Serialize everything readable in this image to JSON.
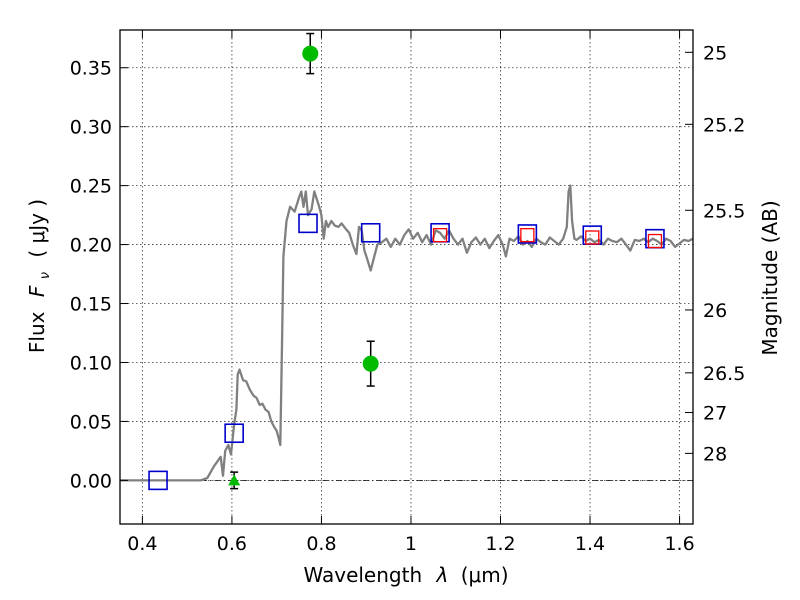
{
  "chart_data": {
    "type": "scatter",
    "xlabel": "Wavelength",
    "xlabel_symbol": "λ",
    "xlabel_unit": "(μm)",
    "ylabel": "Flux",
    "ylabel_symbol": "F",
    "ylabel_symbol_sub": "ν",
    "ylabel_unit": "( μJy )",
    "ylabel_right": "Magnitude (AB)",
    "xlim": [
      0.35,
      1.63
    ],
    "ylim": [
      -0.037,
      0.382
    ],
    "grid": true,
    "x_ticks": [
      0.4,
      0.6,
      0.8,
      1.0,
      1.2,
      1.4,
      1.6
    ],
    "x_tick_labels": [
      "0.4",
      "0.6",
      "0.8",
      "1",
      "1.2",
      "1.4",
      "1.6"
    ],
    "y_ticks": [
      0.0,
      0.05,
      0.1,
      0.15,
      0.2,
      0.25,
      0.3,
      0.35
    ],
    "y_tick_labels": [
      "0.00",
      "0.05",
      "0.10",
      "0.15",
      "0.20",
      "0.25",
      "0.30",
      "0.35"
    ],
    "mag_ticks": [
      25,
      25.2,
      25.5,
      26,
      26.5,
      27,
      28
    ],
    "mag_tick_labels": [
      "25",
      "25.2",
      "25.5",
      "26",
      "26.5",
      "27",
      "28"
    ],
    "zero_line": 0.0,
    "colors": {
      "template": "#808080",
      "model_squares": "#0000cc",
      "model_squares_red": "#ff0000",
      "observed_points": "#00bb00",
      "error_bars": "#000000"
    },
    "series": [
      {
        "kind": "template_spectrum",
        "points": [
          [
            0.35,
            0.0
          ],
          [
            0.53,
            0.0
          ],
          [
            0.545,
            0.002
          ],
          [
            0.56,
            0.012
          ],
          [
            0.575,
            0.02
          ],
          [
            0.58,
            0.004
          ],
          [
            0.585,
            0.025
          ],
          [
            0.592,
            0.03
          ],
          [
            0.598,
            0.022
          ],
          [
            0.605,
            0.048
          ],
          [
            0.61,
            0.06
          ],
          [
            0.613,
            0.09
          ],
          [
            0.617,
            0.094
          ],
          [
            0.625,
            0.085
          ],
          [
            0.632,
            0.084
          ],
          [
            0.64,
            0.077
          ],
          [
            0.648,
            0.072
          ],
          [
            0.655,
            0.07
          ],
          [
            0.662,
            0.064
          ],
          [
            0.668,
            0.065
          ],
          [
            0.675,
            0.06
          ],
          [
            0.682,
            0.058
          ],
          [
            0.688,
            0.05
          ],
          [
            0.695,
            0.045
          ],
          [
            0.7,
            0.042
          ],
          [
            0.705,
            0.035
          ],
          [
            0.708,
            0.03
          ],
          [
            0.712,
            0.12
          ],
          [
            0.715,
            0.19
          ],
          [
            0.722,
            0.22
          ],
          [
            0.73,
            0.232
          ],
          [
            0.74,
            0.228
          ],
          [
            0.75,
            0.24
          ],
          [
            0.755,
            0.245
          ],
          [
            0.76,
            0.232
          ],
          [
            0.765,
            0.245
          ],
          [
            0.77,
            0.225
          ],
          [
            0.778,
            0.23
          ],
          [
            0.784,
            0.245
          ],
          [
            0.79,
            0.238
          ],
          [
            0.795,
            0.232
          ],
          [
            0.8,
            0.225
          ],
          [
            0.805,
            0.205
          ],
          [
            0.81,
            0.22
          ],
          [
            0.815,
            0.215
          ],
          [
            0.822,
            0.22
          ],
          [
            0.83,
            0.216
          ],
          [
            0.838,
            0.215
          ],
          [
            0.845,
            0.218
          ],
          [
            0.855,
            0.213
          ],
          [
            0.862,
            0.21
          ],
          [
            0.87,
            0.2
          ],
          [
            0.878,
            0.192
          ],
          [
            0.884,
            0.215
          ],
          [
            0.89,
            0.212
          ],
          [
            0.896,
            0.195
          ],
          [
            0.902,
            0.188
          ],
          [
            0.91,
            0.178
          ],
          [
            0.918,
            0.19
          ],
          [
            0.925,
            0.2
          ],
          [
            0.935,
            0.202
          ],
          [
            0.945,
            0.205
          ],
          [
            0.955,
            0.198
          ],
          [
            0.965,
            0.205
          ],
          [
            0.975,
            0.2
          ],
          [
            0.985,
            0.208
          ],
          [
            0.995,
            0.213
          ],
          [
            1.005,
            0.205
          ],
          [
            1.015,
            0.21
          ],
          [
            1.025,
            0.202
          ],
          [
            1.035,
            0.208
          ],
          [
            1.045,
            0.2
          ],
          [
            1.055,
            0.212
          ],
          [
            1.065,
            0.21
          ],
          [
            1.075,
            0.205
          ],
          [
            1.085,
            0.212
          ],
          [
            1.095,
            0.205
          ],
          [
            1.105,
            0.2
          ],
          [
            1.115,
            0.205
          ],
          [
            1.125,
            0.193
          ],
          [
            1.135,
            0.202
          ],
          [
            1.145,
            0.206
          ],
          [
            1.155,
            0.2
          ],
          [
            1.165,
            0.205
          ],
          [
            1.175,
            0.197
          ],
          [
            1.185,
            0.203
          ],
          [
            1.195,
            0.208
          ],
          [
            1.205,
            0.2
          ],
          [
            1.212,
            0.19
          ],
          [
            1.22,
            0.205
          ],
          [
            1.23,
            0.203
          ],
          [
            1.24,
            0.207
          ],
          [
            1.25,
            0.2
          ],
          [
            1.26,
            0.203
          ],
          [
            1.27,
            0.198
          ],
          [
            1.28,
            0.205
          ],
          [
            1.29,
            0.202
          ],
          [
            1.3,
            0.2
          ],
          [
            1.31,
            0.206
          ],
          [
            1.32,
            0.203
          ],
          [
            1.33,
            0.2
          ],
          [
            1.34,
            0.205
          ],
          [
            1.348,
            0.215
          ],
          [
            1.352,
            0.245
          ],
          [
            1.356,
            0.25
          ],
          [
            1.36,
            0.22
          ],
          [
            1.365,
            0.205
          ],
          [
            1.37,
            0.204
          ],
          [
            1.38,
            0.207
          ],
          [
            1.39,
            0.203
          ],
          [
            1.4,
            0.205
          ],
          [
            1.41,
            0.202
          ],
          [
            1.42,
            0.204
          ],
          [
            1.43,
            0.2
          ],
          [
            1.44,
            0.205
          ],
          [
            1.45,
            0.203
          ],
          [
            1.46,
            0.202
          ],
          [
            1.47,
            0.205
          ],
          [
            1.48,
            0.2
          ],
          [
            1.49,
            0.195
          ],
          [
            1.5,
            0.204
          ],
          [
            1.51,
            0.203
          ],
          [
            1.52,
            0.205
          ],
          [
            1.53,
            0.202
          ],
          [
            1.54,
            0.205
          ],
          [
            1.55,
            0.203
          ],
          [
            1.56,
            0.2
          ],
          [
            1.57,
            0.205
          ],
          [
            1.58,
            0.203
          ],
          [
            1.59,
            0.198
          ],
          [
            1.6,
            0.201
          ],
          [
            1.61,
            0.204
          ],
          [
            1.62,
            0.203
          ],
          [
            1.63,
            0.205
          ]
        ]
      },
      {
        "kind": "model_squares",
        "points": [
          [
            0.435,
            0.0
          ],
          [
            0.605,
            0.04
          ],
          [
            0.77,
            0.218
          ],
          [
            0.91,
            0.21
          ],
          [
            1.065,
            0.21
          ],
          [
            1.26,
            0.209
          ],
          [
            1.405,
            0.208
          ],
          [
            1.545,
            0.205
          ]
        ]
      },
      {
        "kind": "model_squares_red",
        "points": [
          [
            1.065,
            0.208
          ],
          [
            1.26,
            0.208
          ],
          [
            1.405,
            0.206
          ],
          [
            1.545,
            0.203
          ]
        ]
      },
      {
        "kind": "observed_points",
        "points": [
          [
            0.775,
            0.362,
            0.017
          ],
          [
            0.91,
            0.099,
            0.019
          ]
        ]
      },
      {
        "kind": "upper_limit",
        "points": [
          [
            0.605,
            0.0,
            0.007
          ]
        ]
      }
    ]
  }
}
